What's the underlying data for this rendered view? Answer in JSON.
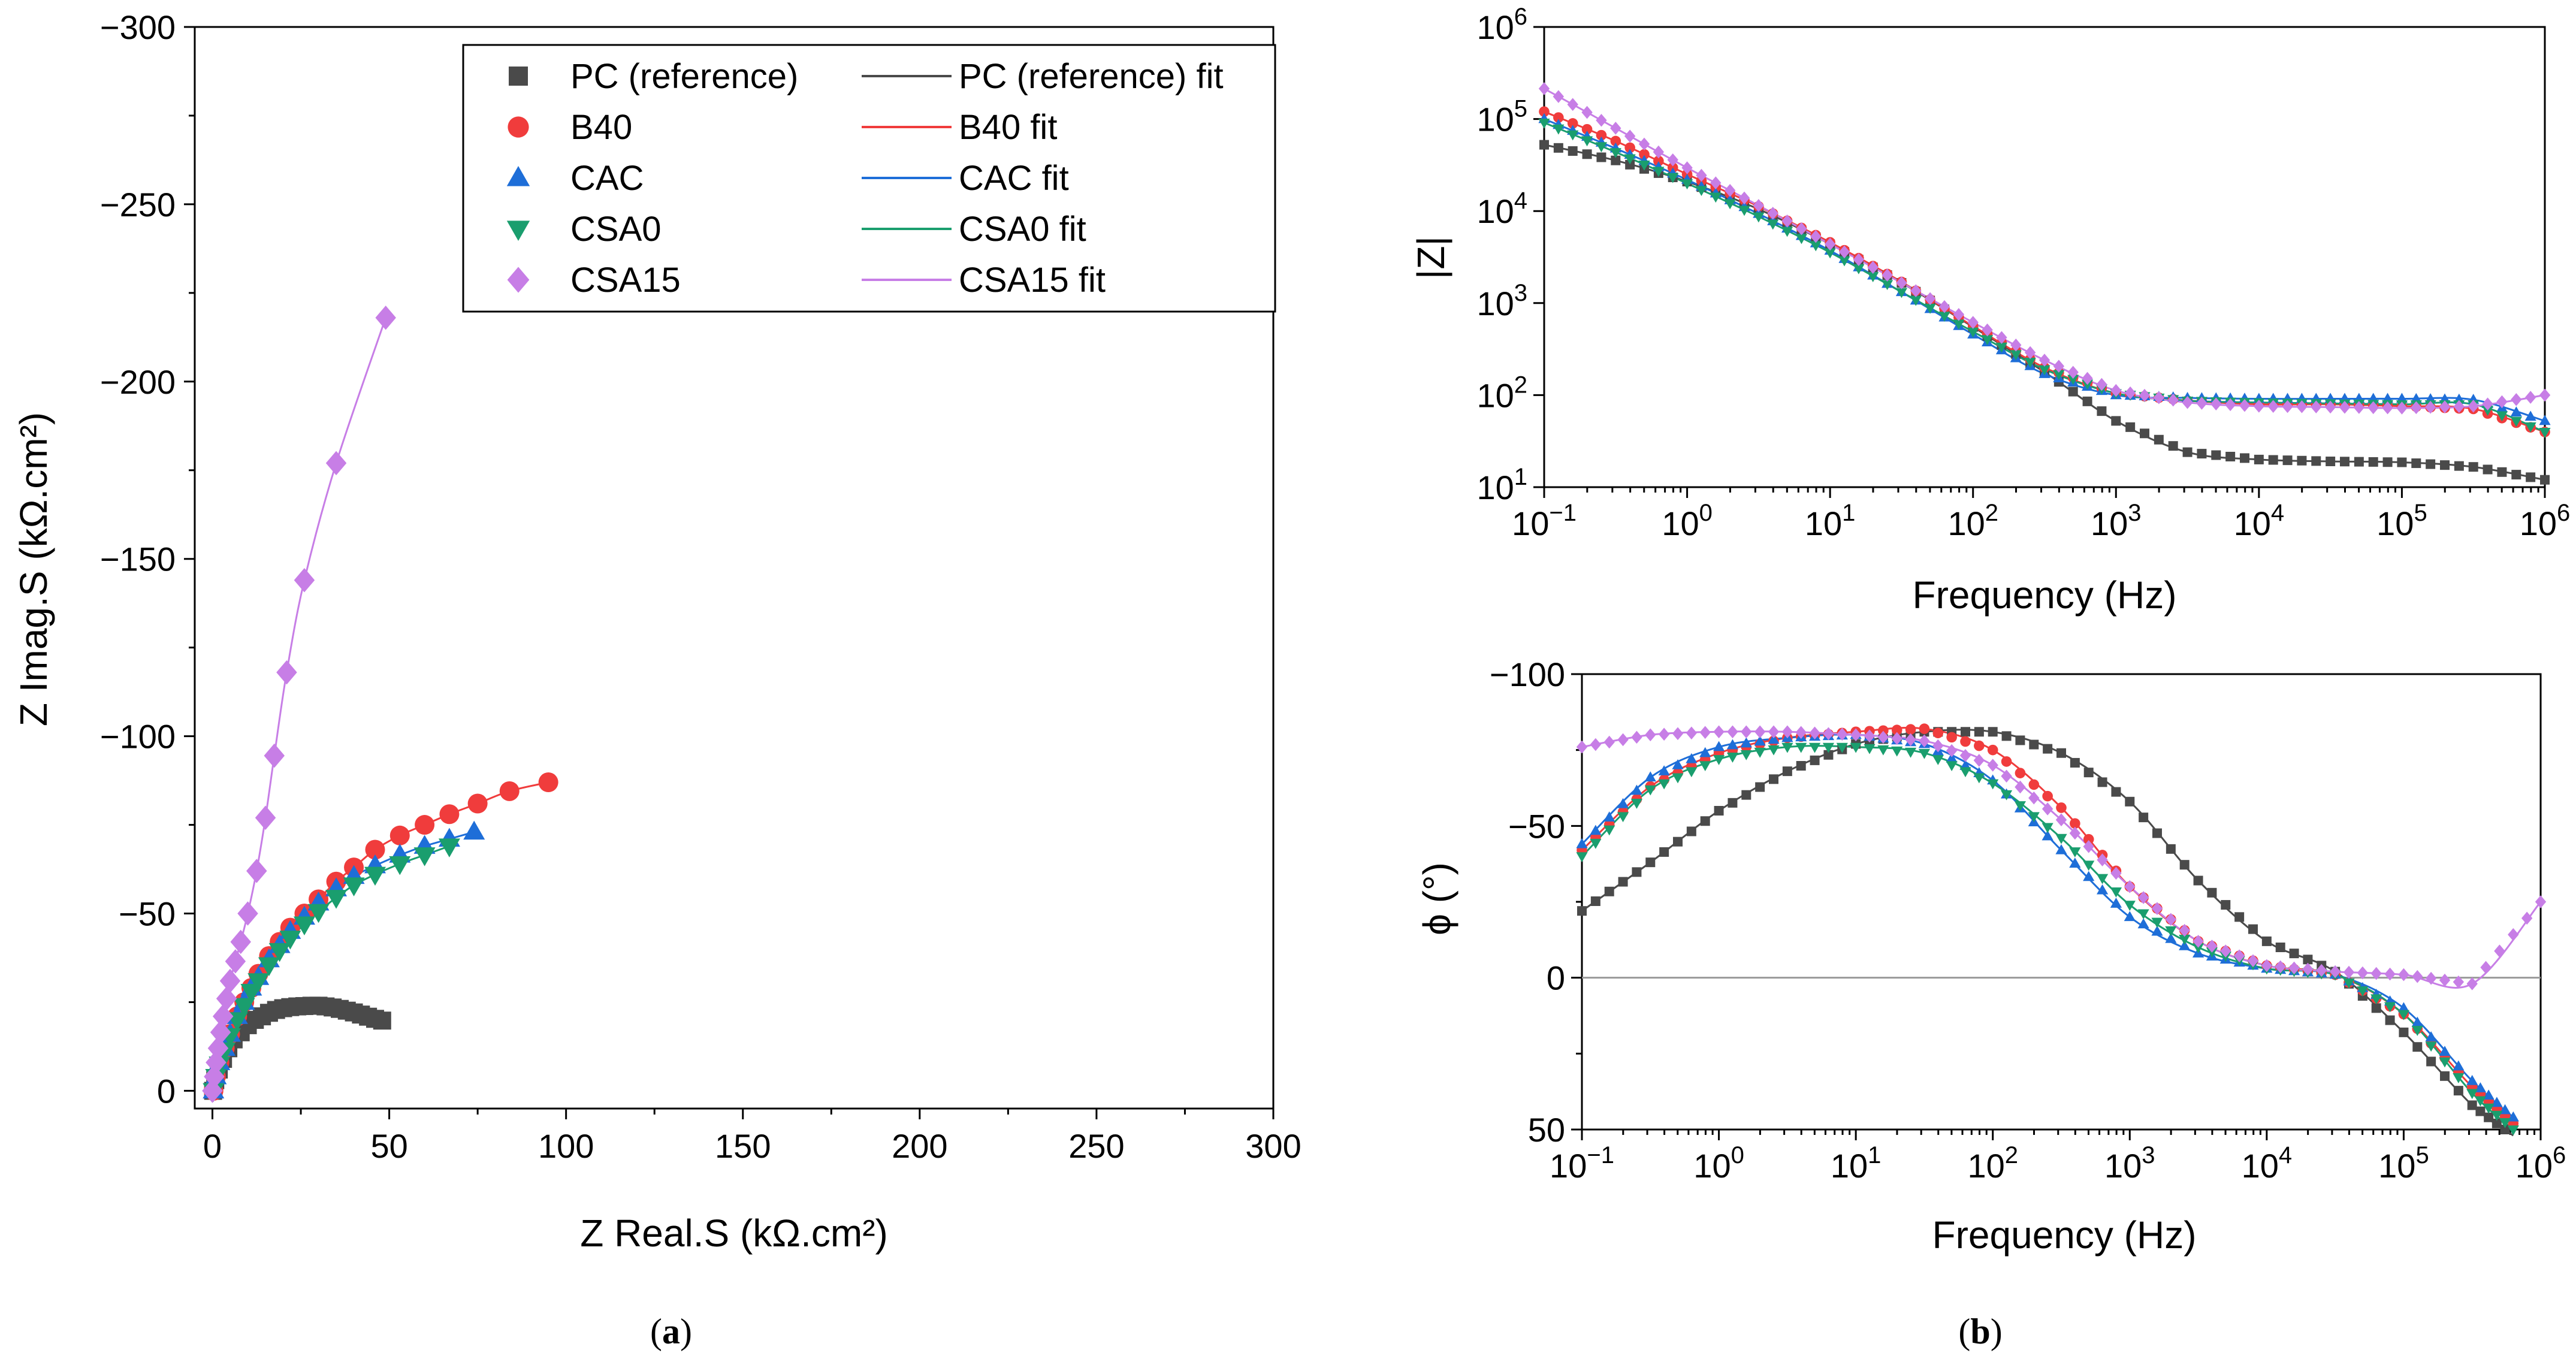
{
  "colors": {
    "PC": "#4a4a4a",
    "B40": "#f03c3c",
    "CAC": "#1e6ed8",
    "CSA0": "#1a9e6e",
    "CSA15": "#c77ee6",
    "zero_line": "#999999"
  },
  "chart_data": [
    {
      "id": "nyquist",
      "type": "scatter",
      "panel_label": "a",
      "xlabel": "Z Real.S (kΩ.cm²)",
      "ylabel": "Z Imag.S (kΩ.cm²)",
      "xlim": [
        -5,
        300
      ],
      "ylim": [
        5,
        -300
      ],
      "xticks": [
        0,
        50,
        100,
        150,
        200,
        250,
        300
      ],
      "xtick_labels": [
        "0",
        "50",
        "100",
        "150",
        "200",
        "250",
        "300"
      ],
      "yticks": [
        0,
        -50,
        -100,
        -150,
        -200,
        -250,
        -300
      ],
      "ytick_labels": [
        "0",
        "−50",
        "−100",
        "−150",
        "−200",
        "−250",
        "−300"
      ],
      "legend": [
        {
          "key": "PC",
          "label": "PC (reference)",
          "fit_label": "PC (reference) fit",
          "marker": "square"
        },
        {
          "key": "B40",
          "label": "B40",
          "fit_label": "B40 fit",
          "marker": "circle"
        },
        {
          "key": "CAC",
          "label": "CAC",
          "fit_label": "CAC fit",
          "marker": "triangle-up"
        },
        {
          "key": "CSA0",
          "label": "CSA0",
          "fit_label": "CSA0 fit",
          "marker": "triangle-down"
        },
        {
          "key": "CSA15",
          "label": "CSA15",
          "fit_label": "CSA15 fit",
          "marker": "diamond"
        }
      ],
      "series": [
        {
          "key": "PC",
          "name": "PC (reference)",
          "marker": "square",
          "x": [
            0.2,
            0.8,
            1.8,
            3,
            4.5,
            6,
            8,
            10,
            12,
            14,
            16,
            18,
            20,
            22,
            24,
            26,
            28,
            30,
            32,
            34,
            36,
            38,
            40,
            42,
            44,
            46,
            48
          ],
          "y": [
            0,
            -3,
            -6,
            -9,
            -12,
            -14.5,
            -16.5,
            -18.5,
            -20,
            -21,
            -22,
            -22.8,
            -23.3,
            -23.6,
            -23.8,
            -23.9,
            -24,
            -24,
            -23.8,
            -23.5,
            -23.1,
            -22.6,
            -22.1,
            -21.5,
            -20.9,
            -20.3,
            -19.8
          ]
        },
        {
          "key": "B40",
          "name": "B40",
          "marker": "circle",
          "x": [
            0.3,
            1,
            2,
            3.5,
            5,
            7,
            9,
            11,
            13,
            16,
            19,
            22,
            26,
            30,
            35,
            40,
            46,
            53,
            60,
            67,
            75,
            84,
            95
          ],
          "y": [
            0,
            -4,
            -8,
            -12,
            -16,
            -21,
            -25,
            -29,
            -33,
            -38,
            -42,
            -46,
            -50,
            -54,
            -59,
            -63,
            -68,
            -72,
            -75,
            -78,
            -81,
            -84.5,
            -87
          ]
        },
        {
          "key": "CAC",
          "name": "CAC",
          "marker": "triangle-up",
          "x": [
            0.3,
            1,
            2,
            3.5,
            5,
            7,
            9,
            11,
            13,
            16,
            19,
            22,
            26,
            30,
            35,
            40,
            46,
            53,
            60,
            67,
            74
          ],
          "y": [
            0,
            -4,
            -8,
            -12,
            -16,
            -21,
            -25,
            -29,
            -32,
            -37,
            -41,
            -45,
            -49,
            -53,
            -57,
            -60.5,
            -63.5,
            -66.5,
            -69,
            -71,
            -73
          ]
        },
        {
          "key": "CSA0",
          "name": "CSA0",
          "marker": "triangle-down",
          "x": [
            0.3,
            1,
            2,
            3.5,
            5,
            7,
            9,
            11,
            13,
            16,
            19,
            22,
            26,
            30,
            35,
            40,
            46,
            53,
            60,
            67
          ],
          "y": [
            0,
            -4,
            -7.5,
            -11.5,
            -15.5,
            -20,
            -24,
            -28,
            -31,
            -35.5,
            -39.5,
            -43,
            -47,
            -50.5,
            -54.5,
            -58,
            -61,
            -64,
            -66.5,
            -69
          ]
        },
        {
          "key": "CSA15",
          "name": "CSA15",
          "marker": "diamond",
          "x": [
            0,
            0.5,
            1,
            1.6,
            2.3,
            3,
            4,
            5,
            6.5,
            8,
            10,
            12.5,
            15,
            17.5,
            21,
            26,
            35,
            49
          ],
          "y": [
            0,
            -4,
            -8,
            -12,
            -16.5,
            -21,
            -26,
            -31,
            -36.5,
            -42,
            -50,
            -62,
            -77,
            -94.5,
            -118,
            -144,
            -177,
            -218
          ]
        }
      ]
    },
    {
      "id": "bode-modulus",
      "type": "scatter",
      "panel_label": "b",
      "xlabel": "Frequency (Hz)",
      "ylabel": "|Z|",
      "xscale": "log",
      "yscale": "log",
      "xlim_exp": [
        -1,
        6
      ],
      "ylim_exp": [
        1,
        6
      ],
      "xtick_exps": [
        "−1",
        "0",
        "1",
        "2",
        "3",
        "4",
        "5",
        "6"
      ],
      "ytick_exps": [
        "1",
        "2",
        "3",
        "4",
        "5",
        "6"
      ],
      "tick_base": "10",
      "series": [
        {
          "key": "PC",
          "name": "PC (reference)",
          "log10_f": [
            -1,
            -0.5,
            0,
            0.5,
            1,
            1.5,
            2,
            2.5,
            3,
            3.5,
            4,
            4.5,
            5,
            5.5,
            6
          ],
          "log10_z": [
            4.72,
            4.55,
            4.32,
            4.02,
            3.64,
            3.22,
            2.74,
            2.25,
            1.72,
            1.38,
            1.3,
            1.28,
            1.27,
            1.22,
            1.08
          ]
        },
        {
          "key": "B40",
          "name": "B40",
          "log10_f": [
            -1,
            -0.5,
            0,
            0.5,
            1,
            1.5,
            2,
            2.5,
            3,
            3.5,
            4,
            4.5,
            5,
            5.5,
            6
          ],
          "log10_z": [
            5.08,
            4.76,
            4.4,
            4.05,
            3.66,
            3.23,
            2.75,
            2.3,
            2.02,
            1.94,
            1.9,
            1.9,
            1.88,
            1.85,
            1.6
          ]
        },
        {
          "key": "CAC",
          "name": "CAC",
          "log10_f": [
            -1,
            -0.5,
            0,
            0.5,
            1,
            1.5,
            2,
            2.5,
            3,
            3.5,
            4,
            4.5,
            5,
            5.5,
            6
          ],
          "log10_z": [
            5.0,
            4.68,
            4.34,
            3.97,
            3.57,
            3.12,
            2.66,
            2.23,
            2.0,
            1.97,
            1.96,
            1.96,
            1.96,
            1.95,
            1.72
          ]
        },
        {
          "key": "CSA0",
          "name": "CSA0",
          "log10_f": [
            -1,
            -0.5,
            0,
            0.5,
            1,
            1.5,
            2,
            2.5,
            3,
            3.5,
            4,
            4.5,
            5,
            5.5,
            6
          ],
          "log10_z": [
            4.96,
            4.64,
            4.3,
            3.94,
            3.55,
            3.12,
            2.69,
            2.28,
            2.02,
            1.94,
            1.92,
            1.91,
            1.9,
            1.9,
            1.6
          ]
        },
        {
          "key": "CSA15",
          "name": "CSA15",
          "log10_f": [
            -1,
            -0.5,
            0,
            0.5,
            1,
            1.5,
            2,
            2.5,
            3,
            3.5,
            4,
            4.5,
            5,
            5.5,
            6
          ],
          "log10_z": [
            5.33,
            4.9,
            4.47,
            4.06,
            3.64,
            3.22,
            2.79,
            2.38,
            2.05,
            1.92,
            1.88,
            1.87,
            1.86,
            1.88,
            2.0
          ]
        }
      ]
    },
    {
      "id": "bode-phase",
      "type": "scatter",
      "xlabel": "Frequency (Hz)",
      "ylabel": "ϕ (°)",
      "xscale": "log",
      "xlim_exp": [
        -1,
        6
      ],
      "ylim": [
        50,
        -100
      ],
      "yticks": [
        50,
        0,
        -50,
        -100
      ],
      "ytick_labels": [
        "50",
        "0",
        "−50",
        "−100"
      ],
      "xtick_exps": [
        "−1",
        "0",
        "1",
        "2",
        "3",
        "4",
        "5",
        "6"
      ],
      "tick_base": "10",
      "series": [
        {
          "key": "PC",
          "name": "PC (reference)",
          "log10_f": [
            -1,
            -0.5,
            0,
            0.5,
            1,
            1.5,
            2,
            2.5,
            3,
            3.5,
            4,
            4.5,
            5,
            5.5,
            5.8
          ],
          "phase": [
            -22,
            -38,
            -55,
            -68,
            -77,
            -81,
            -81,
            -74,
            -58,
            -32,
            -12,
            -2,
            18,
            42,
            52
          ]
        },
        {
          "key": "B40",
          "name": "B40",
          "log10_f": [
            -1,
            -0.5,
            0,
            0.5,
            1,
            1.5,
            2,
            2.5,
            3,
            3.5,
            4,
            4.5,
            5,
            5.5,
            5.8
          ],
          "phase": [
            -42,
            -63,
            -74,
            -79,
            -81,
            -82,
            -75,
            -56,
            -30,
            -12,
            -4,
            -1,
            12,
            36,
            48
          ]
        },
        {
          "key": "CAC",
          "name": "CAC",
          "log10_f": [
            -1,
            -0.5,
            0,
            0.5,
            1,
            1.5,
            2,
            2.5,
            3,
            3.5,
            4,
            4.5,
            5,
            5.5,
            5.8
          ],
          "phase": [
            -44,
            -66,
            -76,
            -79,
            -80,
            -77,
            -65,
            -42,
            -20,
            -8,
            -3,
            -1,
            10,
            34,
            46
          ]
        },
        {
          "key": "CSA0",
          "name": "CSA0",
          "log10_f": [
            -1,
            -0.5,
            0,
            0.5,
            1,
            1.5,
            2,
            2.5,
            3,
            3.5,
            4,
            4.5,
            5,
            5.5,
            5.8
          ],
          "phase": [
            -40,
            -62,
            -72,
            -76,
            -76,
            -74,
            -64,
            -46,
            -24,
            -10,
            -3,
            -1,
            12,
            38,
            50
          ]
        },
        {
          "key": "CSA15",
          "name": "CSA15",
          "log10_f": [
            -1,
            -0.5,
            0,
            0.5,
            1,
            1.5,
            2,
            2.5,
            3,
            3.5,
            4,
            4.5,
            5,
            5.5,
            6
          ],
          "phase": [
            -76,
            -80,
            -81,
            -81,
            -80,
            -78,
            -70,
            -52,
            -30,
            -12,
            -4,
            -2,
            -1,
            2,
            -25
          ]
        }
      ]
    }
  ]
}
